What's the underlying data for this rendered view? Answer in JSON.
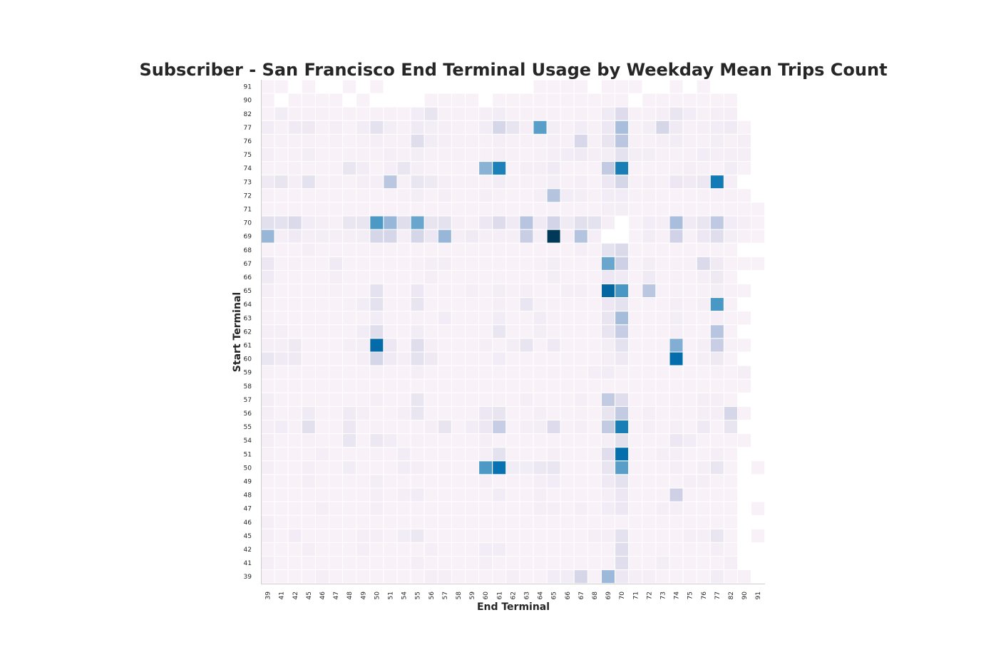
{
  "chart_data": {
    "type": "heatmap",
    "title": "Subscriber - San Francisco End Terminal Usage by Weekday Mean Trips Count",
    "xlabel": "End Terminal",
    "ylabel": "Start Terminal",
    "x_categories": [
      "39",
      "41",
      "42",
      "45",
      "46",
      "47",
      "48",
      "49",
      "50",
      "51",
      "54",
      "55",
      "56",
      "57",
      "58",
      "59",
      "60",
      "61",
      "62",
      "63",
      "64",
      "65",
      "66",
      "67",
      "68",
      "69",
      "70",
      "71",
      "72",
      "73",
      "74",
      "75",
      "76",
      "77",
      "82",
      "90",
      "91"
    ],
    "y_categories": [
      "91",
      "90",
      "82",
      "77",
      "76",
      "75",
      "74",
      "73",
      "72",
      "71",
      "70",
      "69",
      "68",
      "67",
      "66",
      "65",
      "64",
      "63",
      "62",
      "61",
      "60",
      "59",
      "58",
      "57",
      "56",
      "55",
      "54",
      "51",
      "50",
      "49",
      "48",
      "47",
      "46",
      "45",
      "42",
      "41",
      "39"
    ],
    "colorscale": [
      "#fff7fb",
      "#ece7f2",
      "#d0d1e6",
      "#a6bddb",
      "#74a9cf",
      "#3690c0",
      "#0570b0",
      "#045a8d",
      "#023858"
    ],
    "grid": false,
    "legend": "none",
    "value_range": [
      0,
      9
    ],
    "missing_value": -1,
    "values": [
      [
        0.4,
        0.4,
        -1,
        0.4,
        -1,
        -1,
        0.4,
        -1,
        0.4,
        -1,
        -1,
        -1,
        -1,
        -1,
        -1,
        -1,
        -1,
        -1,
        -1,
        -1,
        0.4,
        0.4,
        0.4,
        0.4,
        -1,
        0.4,
        0.4,
        0.4,
        -1,
        -1,
        0.4,
        -1,
        0.4,
        -1,
        -1,
        -1,
        -1
      ],
      [
        0.4,
        -1,
        0.4,
        0.4,
        0.4,
        0.4,
        -1,
        0.4,
        -1,
        -1,
        -1,
        -1,
        0.4,
        0.4,
        0.4,
        0.4,
        -1,
        0.4,
        0.4,
        0.4,
        0.4,
        0.4,
        0.4,
        0.4,
        0.4,
        0.4,
        0.4,
        -1,
        0.4,
        0.4,
        0.4,
        0.4,
        0.4,
        0.4,
        0.4,
        -1,
        -1
      ],
      [
        0.4,
        0.8,
        0.5,
        0.5,
        0.5,
        0.4,
        0.5,
        0.4,
        0.5,
        0.5,
        0.4,
        0.8,
        1.3,
        0.5,
        0.5,
        0.4,
        0.6,
        0.8,
        0.5,
        0.5,
        0.5,
        0.5,
        0.4,
        0.5,
        0.4,
        0.9,
        1.7,
        0.5,
        0.5,
        0.6,
        1.2,
        0.8,
        0.5,
        0.6,
        0.6,
        -1,
        -1
      ],
      [
        0.8,
        0.5,
        0.9,
        1.0,
        0.5,
        0.6,
        0.4,
        0.8,
        1.4,
        0.7,
        0.5,
        0.9,
        0.7,
        0.6,
        0.5,
        0.4,
        0.8,
        2.0,
        1.3,
        0.6,
        5.0,
        0.7,
        0.5,
        0.8,
        0.5,
        1.1,
        3.3,
        0.5,
        0.7,
        2.0,
        0.9,
        0.5,
        0.6,
        0.8,
        0.9,
        0.4,
        -1
      ],
      [
        0.5,
        0.5,
        0.5,
        0.5,
        0.4,
        0.5,
        0.4,
        0.5,
        0.6,
        0.5,
        0.5,
        1.6,
        0.8,
        0.6,
        0.5,
        0.5,
        0.5,
        0.6,
        0.5,
        0.5,
        0.5,
        0.6,
        0.5,
        1.9,
        0.5,
        1.3,
        2.8,
        0.5,
        0.5,
        0.6,
        0.8,
        0.5,
        0.5,
        0.7,
        0.5,
        0.6,
        -1
      ],
      [
        0.6,
        0.4,
        0.5,
        0.7,
        0.4,
        0.4,
        0.5,
        0.5,
        0.5,
        0.6,
        0.5,
        0.7,
        0.5,
        0.5,
        0.5,
        0.4,
        0.5,
        0.6,
        0.5,
        0.4,
        0.5,
        0.6,
        0.8,
        0.9,
        0.6,
        0.7,
        1.4,
        0.7,
        0.7,
        0.5,
        0.5,
        0.5,
        0.8,
        0.6,
        0.6,
        0.6,
        -1
      ],
      [
        0.4,
        0.4,
        0.5,
        0.4,
        0.4,
        0.4,
        1.2,
        0.8,
        0.4,
        0.6,
        1.2,
        0.6,
        0.4,
        0.4,
        0.4,
        0.4,
        4.0,
        6.2,
        0.4,
        0.6,
        0.6,
        0.9,
        0.4,
        0.4,
        0.4,
        2.6,
        6.3,
        0.4,
        0.4,
        0.4,
        0.5,
        0.6,
        0.5,
        0.4,
        0.8,
        0.4,
        -1
      ],
      [
        1.0,
        1.3,
        0.6,
        1.4,
        0.5,
        0.5,
        0.4,
        0.6,
        0.6,
        2.8,
        0.5,
        1.2,
        1.0,
        0.6,
        0.5,
        0.5,
        0.5,
        0.8,
        0.5,
        0.5,
        0.5,
        0.7,
        0.5,
        0.6,
        0.4,
        1.1,
        2.0,
        0.5,
        0.6,
        0.5,
        1.1,
        0.9,
        1.1,
        6.4,
        0.6,
        -1,
        -1
      ],
      [
        0.5,
        0.4,
        0.4,
        0.4,
        0.4,
        0.4,
        0.4,
        0.4,
        0.4,
        0.4,
        0.5,
        0.7,
        0.4,
        0.6,
        0.4,
        0.4,
        0.6,
        0.5,
        0.4,
        0.4,
        0.6,
        3.0,
        0.8,
        0.7,
        0.5,
        0.8,
        0.8,
        0.5,
        0.5,
        0.4,
        0.4,
        0.4,
        0.5,
        0.5,
        0.5,
        0.4,
        -1
      ],
      [
        0.4,
        0.4,
        0.4,
        0.4,
        0.4,
        0.4,
        0.4,
        0.4,
        0.4,
        0.4,
        0.4,
        0.4,
        0.4,
        0.4,
        0.4,
        0.4,
        0.4,
        0.4,
        0.4,
        0.4,
        0.4,
        0.4,
        0.4,
        0.4,
        0.4,
        0.6,
        0.7,
        0.4,
        0.4,
        0.4,
        0.4,
        0.4,
        0.4,
        0.4,
        0.4,
        0.4,
        0.4
      ],
      [
        1.5,
        1.4,
        1.8,
        0.8,
        0.6,
        0.5,
        1.2,
        1.2,
        5.2,
        3.7,
        1.6,
        4.7,
        1.3,
        1.4,
        0.6,
        0.5,
        1.1,
        1.7,
        0.9,
        2.9,
        0.9,
        2.1,
        0.9,
        1.5,
        1.4,
        0.6,
        -1,
        0.4,
        0.8,
        0.6,
        3.3,
        0.9,
        1.2,
        2.7,
        0.8,
        0.6,
        0.4
      ],
      [
        3.7,
        0.6,
        0.9,
        0.6,
        0.7,
        0.6,
        0.6,
        0.7,
        2.0,
        2.0,
        0.6,
        2.0,
        1.1,
        3.7,
        0.6,
        0.9,
        0.6,
        0.6,
        0.6,
        2.4,
        0.6,
        9.0,
        0.6,
        3.0,
        0.6,
        -1,
        -1,
        0.4,
        0.8,
        0.5,
        2.2,
        0.5,
        1.1,
        1.6,
        0.7,
        0.5,
        0.4
      ],
      [
        0.4,
        0.4,
        0.4,
        0.6,
        0.4,
        0.4,
        0.4,
        0.4,
        0.5,
        0.4,
        0.4,
        0.4,
        0.4,
        0.4,
        0.4,
        0.4,
        0.4,
        0.4,
        0.4,
        0.4,
        0.4,
        0.4,
        0.4,
        0.6,
        0.4,
        1.4,
        1.8,
        0.4,
        0.4,
        0.4,
        0.4,
        0.4,
        0.4,
        0.4,
        0.4,
        -1,
        -1
      ],
      [
        1.1,
        0.4,
        0.5,
        0.4,
        0.4,
        0.9,
        0.4,
        0.4,
        0.4,
        0.4,
        0.4,
        0.5,
        0.6,
        0.7,
        0.4,
        0.4,
        0.4,
        0.4,
        0.4,
        0.4,
        0.5,
        0.7,
        0.4,
        0.4,
        0.4,
        4.7,
        2.3,
        0.4,
        0.7,
        0.4,
        0.5,
        0.5,
        1.8,
        0.9,
        0.4,
        0.4,
        0.4
      ],
      [
        0.9,
        0.4,
        0.4,
        0.4,
        0.4,
        0.6,
        0.4,
        0.4,
        0.4,
        0.4,
        0.4,
        0.4,
        0.6,
        0.4,
        0.4,
        0.4,
        0.4,
        0.4,
        0.4,
        0.4,
        0.4,
        0.7,
        0.4,
        0.4,
        0.4,
        1.1,
        0.9,
        0.4,
        0.9,
        0.4,
        0.5,
        0.4,
        0.6,
        1.0,
        0.4,
        -1,
        -1
      ],
      [
        0.6,
        0.4,
        0.4,
        0.4,
        0.4,
        0.5,
        0.4,
        0.4,
        1.4,
        0.4,
        0.4,
        1.1,
        0.4,
        0.5,
        0.4,
        0.6,
        0.4,
        0.7,
        0.5,
        0.6,
        0.4,
        0.4,
        0.6,
        0.6,
        0.4,
        7.2,
        5.3,
        0.4,
        2.8,
        0.4,
        0.5,
        0.4,
        0.5,
        0.7,
        0.5,
        0.4,
        -1
      ],
      [
        0.5,
        0.4,
        0.4,
        0.4,
        0.4,
        0.4,
        0.5,
        0.8,
        1.4,
        0.4,
        0.4,
        1.3,
        0.4,
        0.4,
        0.4,
        0.4,
        0.4,
        0.6,
        0.4,
        1.2,
        0.5,
        0.5,
        0.4,
        0.4,
        0.4,
        1.1,
        1.4,
        0.4,
        0.4,
        0.4,
        0.6,
        0.4,
        0.6,
        5.3,
        0.5,
        -1,
        -1
      ],
      [
        0.5,
        0.4,
        0.4,
        0.4,
        0.4,
        0.4,
        0.4,
        0.4,
        0.8,
        0.4,
        0.4,
        0.5,
        0.4,
        0.8,
        0.4,
        0.4,
        0.4,
        0.8,
        0.4,
        0.4,
        0.8,
        0.5,
        0.4,
        0.4,
        0.4,
        1.3,
        3.4,
        0.4,
        0.4,
        0.4,
        0.7,
        0.4,
        0.4,
        0.6,
        0.4,
        0.4,
        -1
      ],
      [
        0.6,
        0.6,
        0.4,
        0.4,
        0.4,
        0.4,
        0.4,
        0.8,
        1.6,
        0.4,
        0.4,
        0.8,
        0.4,
        0.4,
        0.4,
        0.4,
        0.4,
        1.2,
        0.4,
        0.4,
        0.7,
        0.5,
        0.4,
        0.4,
        0.4,
        1.3,
        2.5,
        0.4,
        0.4,
        0.4,
        0.6,
        0.4,
        0.4,
        2.9,
        0.4,
        -1,
        -1
      ],
      [
        0.6,
        0.6,
        1.0,
        0.4,
        0.4,
        0.4,
        0.6,
        0.7,
        7.0,
        1.1,
        0.4,
        1.6,
        0.6,
        0.4,
        0.4,
        0.4,
        0.6,
        0.4,
        0.7,
        1.3,
        0.4,
        1.0,
        0.4,
        0.4,
        0.4,
        0.7,
        1.4,
        0.4,
        0.4,
        0.4,
        4.2,
        0.4,
        0.6,
        2.4,
        0.5,
        0.4,
        -1
      ],
      [
        1.2,
        0.9,
        1.0,
        0.4,
        0.4,
        0.4,
        0.4,
        0.6,
        2.0,
        0.9,
        0.6,
        1.4,
        1.0,
        0.4,
        0.4,
        0.4,
        0.4,
        0.8,
        0.4,
        0.4,
        0.4,
        0.4,
        0.4,
        0.4,
        0.4,
        0.6,
        1.0,
        0.4,
        0.4,
        0.4,
        6.9,
        0.4,
        0.6,
        1.0,
        0.4,
        -1,
        -1
      ],
      [
        0.5,
        0.4,
        0.4,
        0.4,
        0.4,
        0.4,
        0.4,
        0.4,
        0.5,
        0.4,
        0.4,
        0.6,
        0.4,
        0.4,
        0.4,
        0.4,
        0.4,
        0.4,
        0.4,
        0.4,
        0.4,
        0.5,
        0.4,
        0.4,
        0.6,
        0.8,
        0.5,
        0.4,
        0.4,
        0.4,
        0.4,
        0.4,
        0.4,
        0.5,
        0.4,
        0.6,
        -1
      ],
      [
        0.4,
        0.4,
        0.4,
        0.4,
        0.4,
        0.4,
        0.4,
        0.4,
        0.4,
        0.4,
        0.4,
        0.4,
        0.4,
        0.4,
        0.4,
        0.4,
        0.4,
        0.4,
        0.4,
        0.4,
        0.4,
        0.4,
        0.4,
        0.4,
        0.4,
        0.4,
        0.4,
        0.4,
        0.4,
        0.4,
        0.4,
        0.4,
        0.4,
        0.4,
        0.4,
        0.4,
        -1
      ],
      [
        0.7,
        0.4,
        0.4,
        0.4,
        0.4,
        0.4,
        0.4,
        0.4,
        0.6,
        0.4,
        0.4,
        1.2,
        0.4,
        0.4,
        0.4,
        0.4,
        0.4,
        0.4,
        0.4,
        0.6,
        0.4,
        0.4,
        0.4,
        0.6,
        0.4,
        2.6,
        1.6,
        0.4,
        0.4,
        0.4,
        0.5,
        0.4,
        0.6,
        0.6,
        0.4,
        -1,
        -1
      ],
      [
        0.6,
        0.4,
        0.5,
        0.9,
        0.4,
        0.4,
        0.9,
        0.6,
        0.4,
        0.4,
        0.6,
        1.2,
        0.4,
        0.4,
        0.4,
        0.4,
        1.1,
        1.3,
        0.4,
        0.4,
        0.6,
        0.4,
        0.4,
        0.5,
        0.4,
        1.3,
        2.6,
        0.4,
        0.6,
        0.4,
        0.5,
        0.4,
        0.6,
        0.6,
        2.0,
        0.4,
        -1
      ],
      [
        0.6,
        0.8,
        0.5,
        1.5,
        0.4,
        0.4,
        1.1,
        0.4,
        0.5,
        0.4,
        0.4,
        0.4,
        0.6,
        1.3,
        0.4,
        0.8,
        1.1,
        2.5,
        0.4,
        0.6,
        0.7,
        1.7,
        0.5,
        0.6,
        0.4,
        2.6,
        6.3,
        0.4,
        0.6,
        0.4,
        0.6,
        0.4,
        1.0,
        0.4,
        1.3,
        -1,
        -1
      ],
      [
        0.6,
        0.4,
        0.4,
        0.5,
        0.4,
        0.4,
        1.2,
        0.4,
        1.1,
        0.8,
        0.4,
        0.5,
        0.4,
        0.4,
        0.4,
        0.4,
        0.6,
        0.4,
        0.4,
        0.4,
        0.4,
        0.4,
        0.4,
        0.4,
        0.4,
        0.6,
        1.5,
        0.4,
        0.4,
        0.4,
        1.1,
        0.8,
        0.4,
        0.4,
        0.4,
        0.4,
        -1
      ],
      [
        0.5,
        0.4,
        0.4,
        0.4,
        0.6,
        0.4,
        0.4,
        0.4,
        0.5,
        0.4,
        0.8,
        0.4,
        0.4,
        0.4,
        0.4,
        0.4,
        0.6,
        1.4,
        0.4,
        0.4,
        0.4,
        0.6,
        0.4,
        0.4,
        0.4,
        1.6,
        6.8,
        0.4,
        0.4,
        0.6,
        0.6,
        0.4,
        0.4,
        0.6,
        0.4,
        -1,
        -1
      ],
      [
        0.6,
        0.4,
        0.4,
        0.6,
        0.4,
        0.4,
        0.8,
        0.4,
        0.4,
        0.4,
        0.8,
        0.6,
        0.4,
        0.5,
        0.4,
        0.4,
        5.2,
        6.7,
        0.8,
        0.8,
        1.1,
        1.2,
        0.4,
        0.4,
        0.4,
        1.3,
        5.0,
        0.4,
        0.4,
        0.4,
        0.6,
        0.4,
        0.6,
        1.2,
        0.4,
        -1,
        0.4
      ],
      [
        0.4,
        0.4,
        0.4,
        0.6,
        0.4,
        0.4,
        0.4,
        0.4,
        0.7,
        0.4,
        0.4,
        0.4,
        0.4,
        0.4,
        0.4,
        0.4,
        0.6,
        0.4,
        0.4,
        0.4,
        0.6,
        0.8,
        0.4,
        0.4,
        0.4,
        1.0,
        1.4,
        0.4,
        0.4,
        0.4,
        0.4,
        0.6,
        0.6,
        0.4,
        0.4,
        -1,
        -1
      ],
      [
        0.4,
        0.4,
        0.4,
        0.4,
        0.4,
        0.4,
        0.4,
        0.4,
        0.6,
        0.4,
        0.6,
        0.8,
        0.4,
        0.4,
        0.4,
        0.4,
        0.4,
        0.8,
        0.4,
        0.4,
        0.6,
        0.4,
        0.4,
        0.4,
        0.4,
        0.6,
        1.1,
        0.4,
        0.4,
        0.4,
        2.3,
        0.4,
        0.4,
        0.4,
        0.4,
        -1,
        -1
      ],
      [
        0.4,
        0.4,
        0.4,
        0.4,
        0.6,
        0.4,
        0.4,
        0.4,
        0.6,
        0.4,
        0.4,
        0.4,
        0.4,
        0.4,
        0.4,
        0.4,
        0.4,
        0.4,
        0.4,
        0.4,
        0.6,
        0.6,
        0.4,
        0.6,
        0.4,
        0.8,
        1.1,
        0.4,
        0.4,
        0.6,
        0.6,
        0.4,
        0.4,
        0.4,
        0.4,
        -1,
        0.4
      ],
      [
        0.6,
        0.4,
        0.4,
        0.4,
        0.4,
        0.4,
        0.4,
        0.4,
        0.4,
        0.4,
        0.4,
        0.4,
        0.4,
        0.4,
        0.4,
        0.4,
        0.4,
        0.4,
        0.4,
        0.4,
        0.4,
        0.4,
        0.4,
        0.4,
        0.4,
        0.4,
        0.4,
        0.4,
        0.4,
        0.4,
        0.4,
        0.4,
        0.4,
        0.4,
        0.4,
        -1,
        -1
      ],
      [
        0.6,
        0.4,
        0.8,
        0.4,
        0.4,
        0.4,
        0.4,
        0.6,
        0.6,
        0.4,
        0.8,
        1.1,
        0.4,
        0.4,
        0.4,
        0.4,
        0.4,
        0.4,
        0.4,
        0.4,
        0.4,
        0.4,
        0.4,
        0.4,
        0.6,
        0.6,
        1.4,
        0.4,
        0.4,
        0.4,
        0.4,
        0.6,
        0.6,
        1.2,
        0.4,
        -1,
        0.4
      ],
      [
        0.4,
        0.4,
        0.4,
        0.6,
        0.4,
        0.4,
        0.4,
        0.6,
        0.4,
        0.4,
        0.4,
        0.4,
        0.6,
        0.4,
        0.4,
        0.4,
        0.8,
        0.8,
        0.4,
        0.4,
        0.4,
        0.4,
        0.4,
        0.4,
        0.4,
        0.4,
        1.6,
        0.4,
        0.4,
        0.4,
        0.4,
        0.4,
        0.4,
        0.6,
        0.4,
        -1,
        -1
      ],
      [
        0.6,
        0.4,
        0.4,
        0.4,
        0.4,
        0.4,
        0.4,
        0.4,
        0.4,
        0.4,
        0.4,
        0.6,
        0.4,
        0.4,
        0.4,
        0.4,
        0.6,
        0.4,
        0.4,
        0.4,
        0.4,
        0.4,
        0.4,
        0.4,
        0.4,
        0.4,
        1.6,
        0.4,
        0.4,
        0.7,
        0.4,
        0.4,
        0.4,
        0.4,
        0.6,
        -1,
        -1
      ],
      [
        0.4,
        0.4,
        0.4,
        0.4,
        0.6,
        0.4,
        0.4,
        0.4,
        0.4,
        0.4,
        0.4,
        0.4,
        0.6,
        0.6,
        0.4,
        0.4,
        0.4,
        0.4,
        0.6,
        0.4,
        0.4,
        0.8,
        0.8,
        2.0,
        0.4,
        3.6,
        1.1,
        0.6,
        0.6,
        0.4,
        0.4,
        0.4,
        0.4,
        0.8,
        0.4,
        0.5,
        -1
      ]
    ]
  }
}
